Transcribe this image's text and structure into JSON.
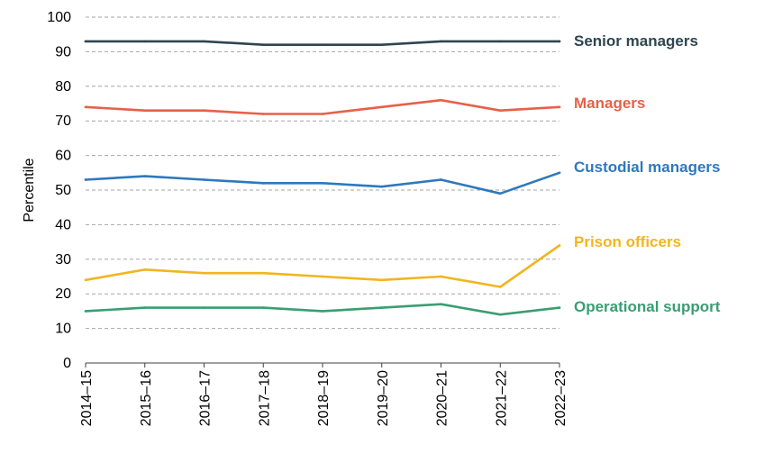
{
  "chart_data": {
    "type": "line",
    "title": "",
    "xlabel": "",
    "ylabel": "Percentile",
    "ylim": [
      0,
      100
    ],
    "yticks": [
      0,
      10,
      20,
      30,
      40,
      50,
      60,
      70,
      80,
      90,
      100
    ],
    "grid": true,
    "legend": "inline-right",
    "categories": [
      "2014–15",
      "2015–16",
      "2016–17",
      "2017–18",
      "2018–19",
      "2019–20",
      "2020–21",
      "2021–22",
      "2022–23"
    ],
    "series": [
      {
        "name": "Senior managers",
        "color": "#2f4550",
        "values": [
          93,
          93,
          93,
          92,
          92,
          92,
          93,
          93,
          93
        ]
      },
      {
        "name": "Managers",
        "color": "#e7604a",
        "values": [
          74,
          73,
          73,
          72,
          72,
          74,
          76,
          73,
          74
        ]
      },
      {
        "name": "Custodial managers",
        "color": "#2f78be",
        "values": [
          53,
          54,
          53,
          52,
          52,
          51,
          53,
          49,
          55
        ]
      },
      {
        "name": "Prison officers",
        "color": "#f2b51f",
        "values": [
          24,
          27,
          26,
          26,
          25,
          24,
          25,
          22,
          34
        ]
      },
      {
        "name": "Operational support",
        "color": "#3a9e72",
        "values": [
          15,
          16,
          16,
          16,
          15,
          16,
          17,
          14,
          16
        ]
      }
    ]
  }
}
